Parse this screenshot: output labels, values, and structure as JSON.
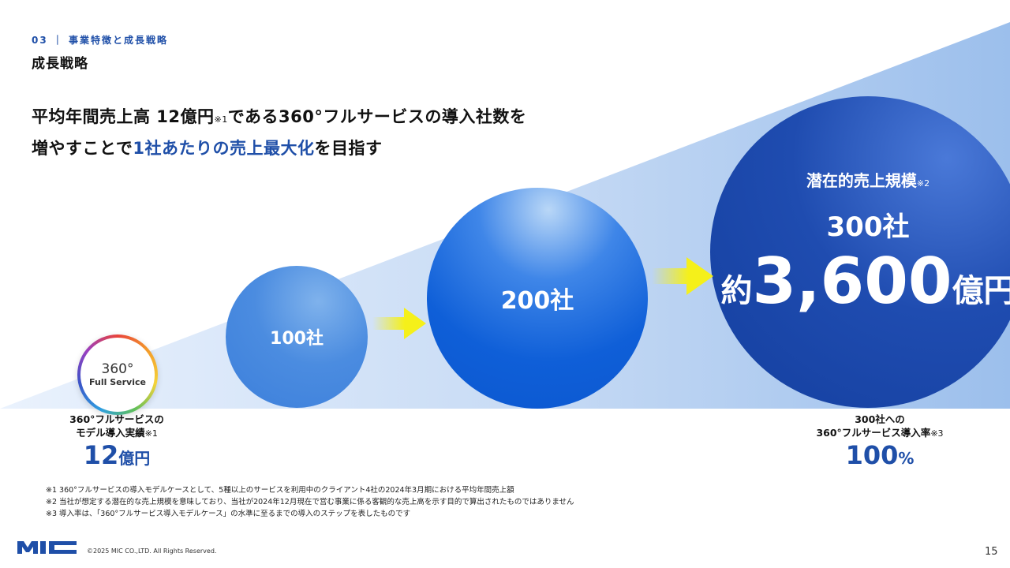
{
  "header": {
    "section_label": "03 ｜ 事業特徴と成長戦略",
    "title": "成長戦略"
  },
  "headline": {
    "line1_part1": "平均年間売上高 12億円",
    "line1_note": "※1",
    "line1_part2": "である360°フルサービスの導入社数を",
    "line2_part1": "増やすことで",
    "line2_accent": "1社あたりの売上最大化",
    "line2_part2": "を目指す"
  },
  "logo_360": {
    "top": "360°",
    "bottom": "Full Service"
  },
  "circles": {
    "c100": "100社",
    "c200": "200社",
    "potential_label": "潜在的売上規模",
    "potential_note": "※2",
    "potential_count": "300社",
    "potential_prefix": "約",
    "potential_value": "3,600",
    "potential_unit": "億円"
  },
  "stat_left": {
    "line1": "360°フルサービスの",
    "line2": "モデル導入実績",
    "note": "※1",
    "value": "12",
    "unit": "億円"
  },
  "stat_right": {
    "line1": "300社への",
    "line2": "360°フルサービス導入率",
    "note": "※3",
    "value": "100",
    "unit": "%"
  },
  "footnotes": [
    "※1 360°フルサービスの導入モデルケースとして、5種以上のサービスを利用中のクライアント4社の2024年3月期における平均年間売上額",
    "※2 当社が想定する潜在的な売上規模を意味しており、当社が2024年12月現在で営む事業に係る客観的な売上高を示す目的で算出されたものではありません",
    "※3 導入率は、「360°フルサービス導入モデルケース」の水準に至るまでの導入のステップを表したものです"
  ],
  "footer": {
    "logo_text": "MIC",
    "copyright": "©2025 MIC CO.,LTD. All Rights Reserved.",
    "page_number": "15"
  },
  "colors": {
    "accent": "#1f4fa8",
    "arrow": "#f5f01a"
  }
}
